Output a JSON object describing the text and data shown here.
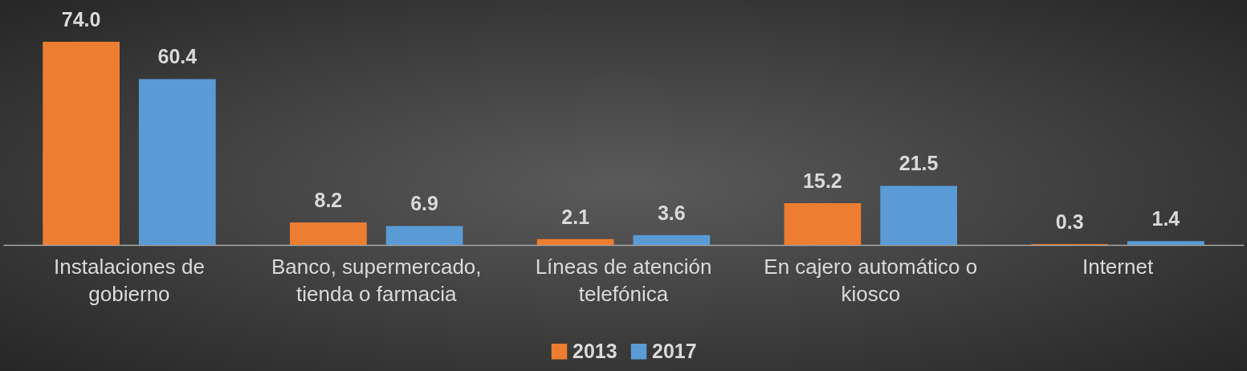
{
  "chart_data": {
    "type": "bar",
    "categories": [
      "Instalaciones de gobierno",
      "Banco, supermercado, tienda o farmacia",
      "Líneas de atención telefónica",
      "En cajero automático o kiosco",
      "Internet"
    ],
    "series": [
      {
        "name": "2013",
        "color": "#ed7d31",
        "values": [
          74.0,
          8.2,
          2.1,
          15.2,
          0.3
        ],
        "value_labels": [
          "74.0",
          "8.2",
          "2.1",
          "15.2",
          "0.3"
        ]
      },
      {
        "name": "2017",
        "color": "#5b9bd5",
        "values": [
          60.4,
          6.9,
          3.6,
          21.5,
          1.4
        ],
        "value_labels": [
          "60.4",
          "6.9",
          "3.6",
          "21.5",
          "1.4"
        ]
      }
    ],
    "legend": "bottom",
    "grid": false
  }
}
